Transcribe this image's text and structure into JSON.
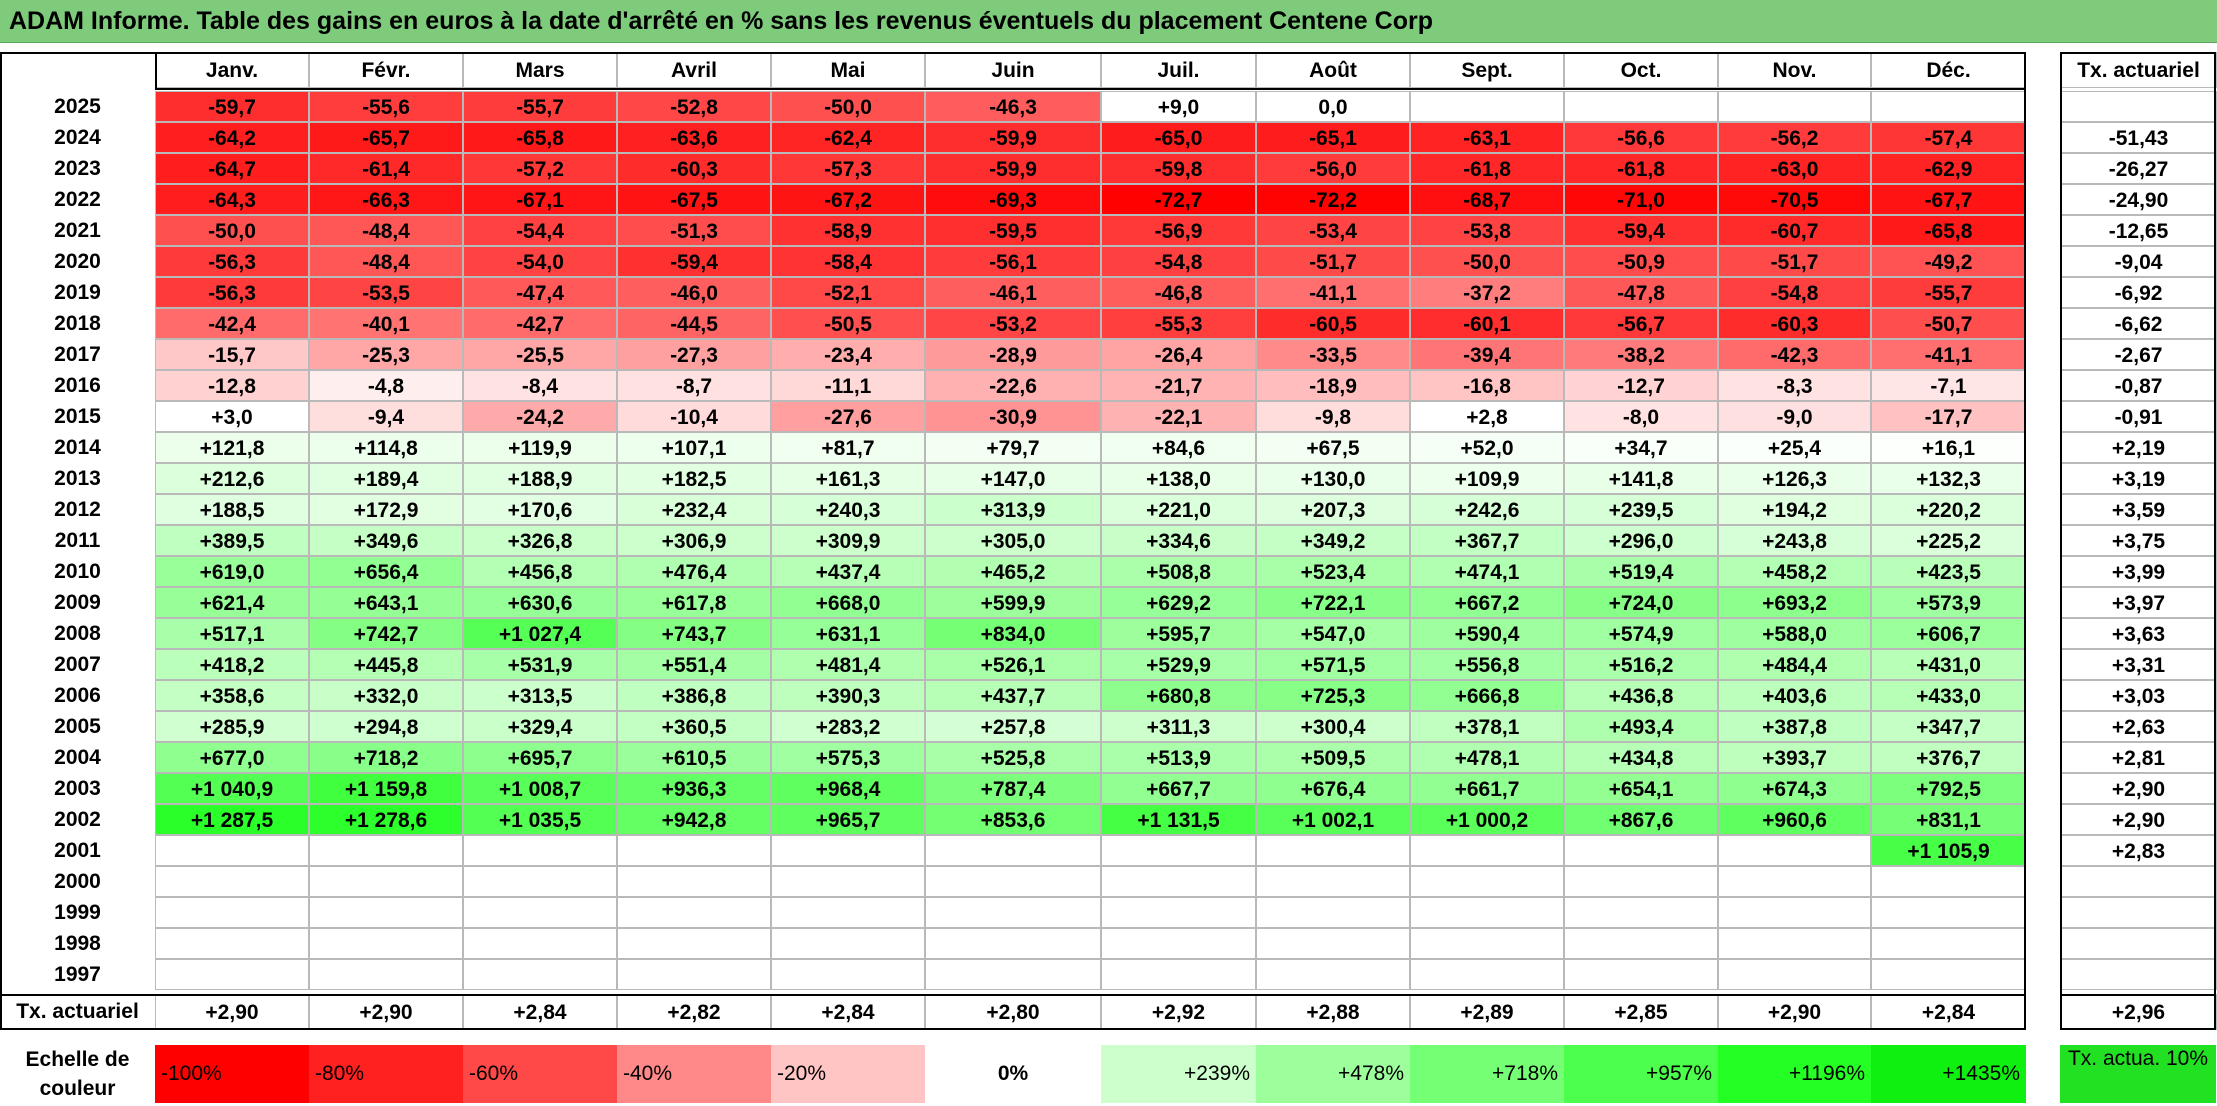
{
  "title": "ADAM Informe. Table des gains en euros à la date d'arrêté en % sans les revenus éventuels du placement Centene Corp",
  "months": [
    "Janv.",
    "Févr.",
    "Mars",
    "Avril",
    "Mai",
    "Juin",
    "Juil.",
    "Août",
    "Sept.",
    "Oct.",
    "Nov.",
    "Déc."
  ],
  "rate_header": "Tx. actuariel",
  "rows": [
    {
      "year": "2025",
      "values": [
        "-59,7",
        "-55,6",
        "-55,7",
        "-52,8",
        "-50,0",
        "-46,3",
        "+9,0",
        "0,0",
        "",
        "",
        "",
        ""
      ],
      "rate": ""
    },
    {
      "year": "2024",
      "values": [
        "-64,2",
        "-65,7",
        "-65,8",
        "-63,6",
        "-62,4",
        "-59,9",
        "-65,0",
        "-65,1",
        "-63,1",
        "-56,6",
        "-56,2",
        "-57,4"
      ],
      "rate": "-51,43"
    },
    {
      "year": "2023",
      "values": [
        "-64,7",
        "-61,4",
        "-57,2",
        "-60,3",
        "-57,3",
        "-59,9",
        "-59,8",
        "-56,0",
        "-61,8",
        "-61,8",
        "-63,0",
        "-62,9"
      ],
      "rate": "-26,27"
    },
    {
      "year": "2022",
      "values": [
        "-64,3",
        "-66,3",
        "-67,1",
        "-67,5",
        "-67,2",
        "-69,3",
        "-72,7",
        "-72,2",
        "-68,7",
        "-71,0",
        "-70,5",
        "-67,7"
      ],
      "rate": "-24,90"
    },
    {
      "year": "2021",
      "values": [
        "-50,0",
        "-48,4",
        "-54,4",
        "-51,3",
        "-58,9",
        "-59,5",
        "-56,9",
        "-53,4",
        "-53,8",
        "-59,4",
        "-60,7",
        "-65,8"
      ],
      "rate": "-12,65"
    },
    {
      "year": "2020",
      "values": [
        "-56,3",
        "-48,4",
        "-54,0",
        "-59,4",
        "-58,4",
        "-56,1",
        "-54,8",
        "-51,7",
        "-50,0",
        "-50,9",
        "-51,7",
        "-49,2"
      ],
      "rate": "-9,04"
    },
    {
      "year": "2019",
      "values": [
        "-56,3",
        "-53,5",
        "-47,4",
        "-46,0",
        "-52,1",
        "-46,1",
        "-46,8",
        "-41,1",
        "-37,2",
        "-47,8",
        "-54,8",
        "-55,7"
      ],
      "rate": "-6,92"
    },
    {
      "year": "2018",
      "values": [
        "-42,4",
        "-40,1",
        "-42,7",
        "-44,5",
        "-50,5",
        "-53,2",
        "-55,3",
        "-60,5",
        "-60,1",
        "-56,7",
        "-60,3",
        "-50,7"
      ],
      "rate": "-6,62"
    },
    {
      "year": "2017",
      "values": [
        "-15,7",
        "-25,3",
        "-25,5",
        "-27,3",
        "-23,4",
        "-28,9",
        "-26,4",
        "-33,5",
        "-39,4",
        "-38,2",
        "-42,3",
        "-41,1"
      ],
      "rate": "-2,67"
    },
    {
      "year": "2016",
      "values": [
        "-12,8",
        "-4,8",
        "-8,4",
        "-8,7",
        "-11,1",
        "-22,6",
        "-21,7",
        "-18,9",
        "-16,8",
        "-12,7",
        "-8,3",
        "-7,1"
      ],
      "rate": "-0,87"
    },
    {
      "year": "2015",
      "values": [
        "+3,0",
        "-9,4",
        "-24,2",
        "-10,4",
        "-27,6",
        "-30,9",
        "-22,1",
        "-9,8",
        "+2,8",
        "-8,0",
        "-9,0",
        "-17,7"
      ],
      "rate": "-0,91"
    },
    {
      "year": "2014",
      "values": [
        "+121,8",
        "+114,8",
        "+119,9",
        "+107,1",
        "+81,7",
        "+79,7",
        "+84,6",
        "+67,5",
        "+52,0",
        "+34,7",
        "+25,4",
        "+16,1"
      ],
      "rate": "+2,19"
    },
    {
      "year": "2013",
      "values": [
        "+212,6",
        "+189,4",
        "+188,9",
        "+182,5",
        "+161,3",
        "+147,0",
        "+138,0",
        "+130,0",
        "+109,9",
        "+141,8",
        "+126,3",
        "+132,3"
      ],
      "rate": "+3,19"
    },
    {
      "year": "2012",
      "values": [
        "+188,5",
        "+172,9",
        "+170,6",
        "+232,4",
        "+240,3",
        "+313,9",
        "+221,0",
        "+207,3",
        "+242,6",
        "+239,5",
        "+194,2",
        "+220,2"
      ],
      "rate": "+3,59"
    },
    {
      "year": "2011",
      "values": [
        "+389,5",
        "+349,6",
        "+326,8",
        "+306,9",
        "+309,9",
        "+305,0",
        "+334,6",
        "+349,2",
        "+367,7",
        "+296,0",
        "+243,8",
        "+225,2"
      ],
      "rate": "+3,75"
    },
    {
      "year": "2010",
      "values": [
        "+619,0",
        "+656,4",
        "+456,8",
        "+476,4",
        "+437,4",
        "+465,2",
        "+508,8",
        "+523,4",
        "+474,1",
        "+519,4",
        "+458,2",
        "+423,5"
      ],
      "rate": "+3,99"
    },
    {
      "year": "2009",
      "values": [
        "+621,4",
        "+643,1",
        "+630,6",
        "+617,8",
        "+668,0",
        "+599,9",
        "+629,2",
        "+722,1",
        "+667,2",
        "+724,0",
        "+693,2",
        "+573,9"
      ],
      "rate": "+3,97"
    },
    {
      "year": "2008",
      "values": [
        "+517,1",
        "+742,7",
        "+1 027,4",
        "+743,7",
        "+631,1",
        "+834,0",
        "+595,7",
        "+547,0",
        "+590,4",
        "+574,9",
        "+588,0",
        "+606,7"
      ],
      "rate": "+3,63"
    },
    {
      "year": "2007",
      "values": [
        "+418,2",
        "+445,8",
        "+531,9",
        "+551,4",
        "+481,4",
        "+526,1",
        "+529,9",
        "+571,5",
        "+556,8",
        "+516,2",
        "+484,4",
        "+431,0"
      ],
      "rate": "+3,31"
    },
    {
      "year": "2006",
      "values": [
        "+358,6",
        "+332,0",
        "+313,5",
        "+386,8",
        "+390,3",
        "+437,7",
        "+680,8",
        "+725,3",
        "+666,8",
        "+436,8",
        "+403,6",
        "+433,0"
      ],
      "rate": "+3,03"
    },
    {
      "year": "2005",
      "values": [
        "+285,9",
        "+294,8",
        "+329,4",
        "+360,5",
        "+283,2",
        "+257,8",
        "+311,3",
        "+300,4",
        "+378,1",
        "+493,4",
        "+387,8",
        "+347,7"
      ],
      "rate": "+2,63"
    },
    {
      "year": "2004",
      "values": [
        "+677,0",
        "+718,2",
        "+695,7",
        "+610,5",
        "+575,3",
        "+525,8",
        "+513,9",
        "+509,5",
        "+478,1",
        "+434,8",
        "+393,7",
        "+376,7"
      ],
      "rate": "+2,81"
    },
    {
      "year": "2003",
      "values": [
        "+1 040,9",
        "+1 159,8",
        "+1 008,7",
        "+936,3",
        "+968,4",
        "+787,4",
        "+667,7",
        "+676,4",
        "+661,7",
        "+654,1",
        "+674,3",
        "+792,5"
      ],
      "rate": "+2,90"
    },
    {
      "year": "2002",
      "values": [
        "+1 287,5",
        "+1 278,6",
        "+1 035,5",
        "+942,8",
        "+965,7",
        "+853,6",
        "+1 131,5",
        "+1 002,1",
        "+1 000,2",
        "+867,6",
        "+960,6",
        "+831,1"
      ],
      "rate": "+2,90"
    },
    {
      "year": "2001",
      "values": [
        "",
        "",
        "",
        "",
        "",
        "",
        "",
        "",
        "",
        "",
        "",
        "+1 105,9"
      ],
      "rate": "+2,83"
    },
    {
      "year": "2000",
      "values": [
        "",
        "",
        "",
        "",
        "",
        "",
        "",
        "",
        "",
        "",
        "",
        ""
      ],
      "rate": ""
    },
    {
      "year": "1999",
      "values": [
        "",
        "",
        "",
        "",
        "",
        "",
        "",
        "",
        "",
        "",
        "",
        ""
      ],
      "rate": ""
    },
    {
      "year": "1998",
      "values": [
        "",
        "",
        "",
        "",
        "",
        "",
        "",
        "",
        "",
        "",
        "",
        ""
      ],
      "rate": ""
    },
    {
      "year": "1997",
      "values": [
        "",
        "",
        "",
        "",
        "",
        "",
        "",
        "",
        "",
        "",
        "",
        ""
      ],
      "rate": ""
    }
  ],
  "footer": {
    "label": "Tx. actuariel",
    "values": [
      "+2,90",
      "+2,90",
      "+2,84",
      "+2,82",
      "+2,84",
      "+2,80",
      "+2,92",
      "+2,88",
      "+2,89",
      "+2,85",
      "+2,90",
      "+2,84"
    ],
    "rate": "+2,96"
  },
  "legend": {
    "label": "Echelle de couleur",
    "steps": [
      {
        "text": "-100%",
        "color": "#ff0000",
        "align": "left"
      },
      {
        "text": "-80%",
        "color": "#ff2020",
        "align": "left"
      },
      {
        "text": "-60%",
        "color": "#ff4848",
        "align": "left"
      },
      {
        "text": "-40%",
        "color": "#ff8888",
        "align": "left"
      },
      {
        "text": "-20%",
        "color": "#ffc4c4",
        "align": "left"
      },
      {
        "text": "0%",
        "color": "#ffffff",
        "align": "center"
      },
      {
        "text": "+239%",
        "color": "#ccffcc",
        "align": "right"
      },
      {
        "text": "+478%",
        "color": "#9cff9c",
        "align": "right"
      },
      {
        "text": "+718%",
        "color": "#74ff74",
        "align": "right"
      },
      {
        "text": "+957%",
        "color": "#4cff4c",
        "align": "right"
      },
      {
        "text": "+1196%",
        "color": "#24ff24",
        "align": "right"
      },
      {
        "text": "+1435%",
        "color": "#10f010",
        "align": "right"
      }
    ],
    "rate_box": {
      "text": "Tx. actua. 10%",
      "color": "#22e022"
    }
  }
}
